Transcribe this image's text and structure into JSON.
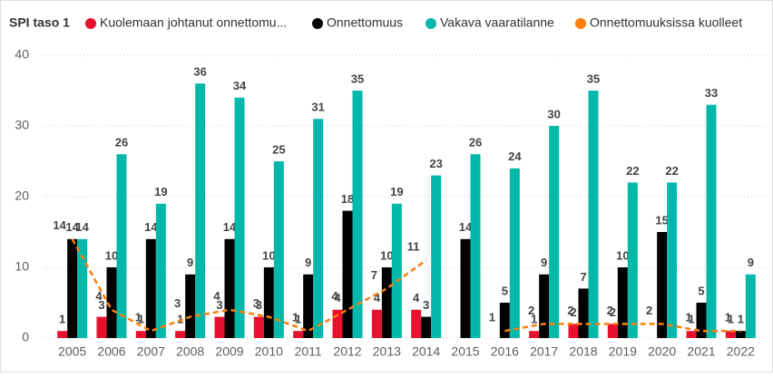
{
  "chart_data": {
    "type": "bar",
    "title": "SPI taso 1",
    "categories": [
      "2005",
      "2006",
      "2007",
      "2008",
      "2009",
      "2010",
      "2011",
      "2012",
      "2013",
      "2014",
      "2015",
      "2016",
      "2017",
      "2018",
      "2019",
      "2020",
      "2021",
      "2022"
    ],
    "series": [
      {
        "name": "Kuolemaan johtanut onnettomu...",
        "color": "#e8112d",
        "values": [
          1,
          3,
          1,
          1,
          3,
          3,
          1,
          4,
          4,
          4,
          null,
          null,
          1,
          2,
          2,
          null,
          1,
          1
        ]
      },
      {
        "name": "Onnettomuus",
        "color": "#000000",
        "values": [
          14,
          10,
          14,
          9,
          14,
          10,
          9,
          18,
          10,
          3,
          14,
          5,
          9,
          7,
          10,
          15,
          5,
          1
        ]
      },
      {
        "name": "Vakava vaaratilanne",
        "color": "#01b8aa",
        "values": [
          14,
          26,
          19,
          36,
          34,
          25,
          31,
          35,
          19,
          23,
          26,
          24,
          30,
          35,
          22,
          22,
          33,
          9
        ]
      },
      {
        "name": "Onnettomuuksissa kuolleet",
        "color": "#fd7f0c",
        "type": "line",
        "values": [
          14,
          4,
          1,
          3,
          4,
          3,
          1,
          4,
          7,
          11,
          null,
          1,
          2,
          2,
          2,
          2,
          1,
          1
        ]
      }
    ],
    "ylim": [
      0,
      40
    ],
    "yticks": [
      0,
      10,
      20,
      30,
      40
    ],
    "grid": true
  }
}
